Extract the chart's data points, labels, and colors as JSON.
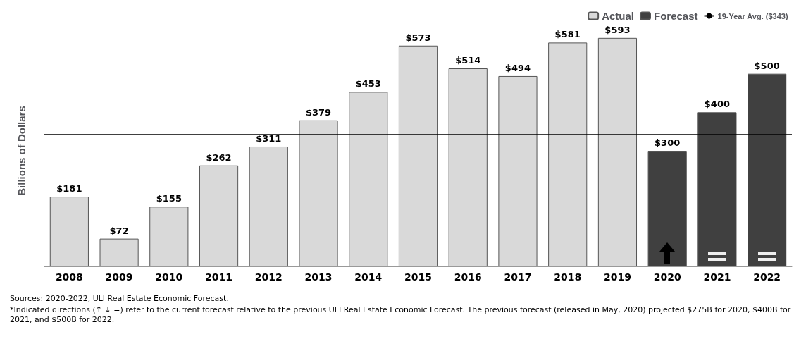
{
  "chart_data": {
    "type": "bar",
    "ylabel": "Billions of Dollars",
    "categories": [
      "2008",
      "2009",
      "2010",
      "2011",
      "2012",
      "2013",
      "2014",
      "2015",
      "2016",
      "2017",
      "2018",
      "2019",
      "2020",
      "2021",
      "2022"
    ],
    "series": [
      {
        "name": "Actual",
        "color": "#d9d9d9",
        "values": [
          181,
          72,
          155,
          262,
          311,
          379,
          453,
          573,
          514,
          494,
          581,
          593,
          null,
          null,
          null
        ],
        "value_labels": [
          "$181",
          "$72",
          "$155",
          "$262",
          "$311",
          "$379",
          "$453",
          "$573",
          "$514",
          "$494",
          "$581",
          "$593",
          null,
          null,
          null
        ]
      },
      {
        "name": "Forecast",
        "color": "#404040",
        "values": [
          null,
          null,
          null,
          null,
          null,
          null,
          null,
          null,
          null,
          null,
          null,
          null,
          300,
          400,
          500
        ],
        "value_labels": [
          null,
          null,
          null,
          null,
          null,
          null,
          null,
          null,
          null,
          null,
          null,
          null,
          "$300",
          "$400",
          "$500"
        ]
      }
    ],
    "ref_lines": [
      {
        "axis": "y",
        "value": 343,
        "label": "19-Year Avg. ($343)",
        "color": "#000000"
      }
    ],
    "legend": "top right",
    "grid": false,
    "tick_labels": "x",
    "annotations": [
      "Sources: 2020-2022, ULI Real Estate Economic Forecast.",
      "*Indicated directions (↑ ↓ =) refer to the current forecast relative to the previous ULI Real Estate Economic Forecast. The previous forecast (released in May, 2020) projected $275B for 2020, $400B for 2021, and $500B for 2022."
    ]
  }
}
